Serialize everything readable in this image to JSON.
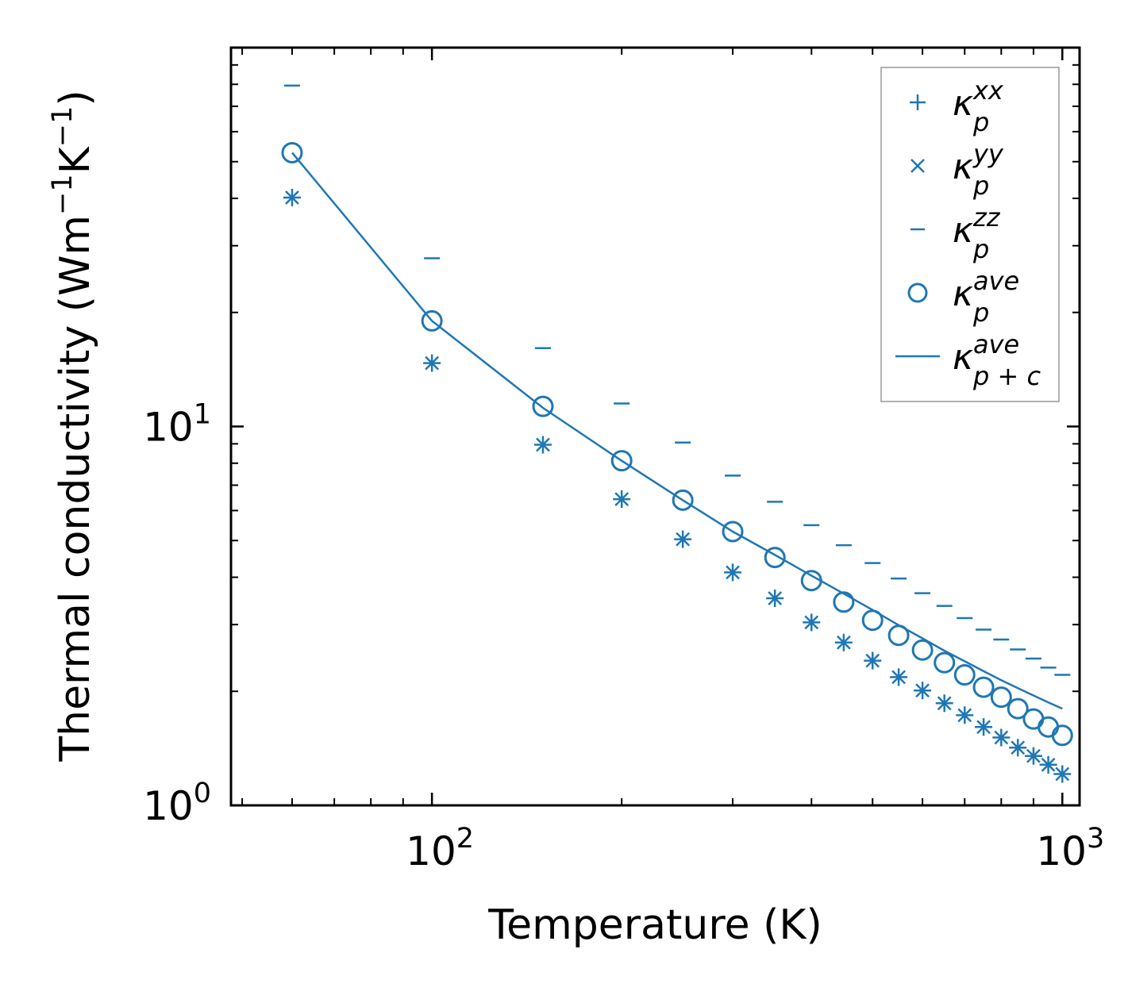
{
  "chart_data": {
    "type": "scatter",
    "xscale": "log",
    "yscale": "log",
    "xlim": [
      48,
      1065
    ],
    "ylim": [
      1.0,
      100
    ],
    "xlabel": "Temperature (K)",
    "ylabel": {
      "base": "Thermal conductivity (Wm",
      "exp1": "−1",
      "mid": "K",
      "exp2": "−1",
      "end": ")"
    },
    "xticks": [
      {
        "base": "10",
        "exp": "2",
        "value": 100
      },
      {
        "base": "10",
        "exp": "3",
        "value": 1000
      }
    ],
    "yticks": [
      {
        "base": "10",
        "exp": "0",
        "value": 1
      },
      {
        "base": "10",
        "exp": "1",
        "value": 10
      }
    ],
    "x": [
      60,
      100,
      150,
      200,
      250,
      300,
      350,
      400,
      450,
      500,
      550,
      600,
      650,
      700,
      750,
      800,
      850,
      900,
      950,
      1000
    ],
    "series": [
      {
        "name": "kp_xx",
        "marker": "plus",
        "values": [
          40.2,
          14.7,
          8.95,
          6.43,
          5.04,
          4.12,
          3.52,
          3.04,
          2.69,
          2.41,
          2.18,
          2.01,
          1.86,
          1.73,
          1.61,
          1.51,
          1.42,
          1.35,
          1.28,
          1.21
        ]
      },
      {
        "name": "kp_yy",
        "marker": "x",
        "values": [
          40.2,
          14.7,
          8.95,
          6.43,
          5.04,
          4.12,
          3.52,
          3.04,
          2.69,
          2.41,
          2.18,
          2.01,
          1.86,
          1.73,
          1.61,
          1.51,
          1.42,
          1.35,
          1.28,
          1.21
        ]
      },
      {
        "name": "kp_zz",
        "marker": "hline",
        "values": [
          79.4,
          27.8,
          16.1,
          11.5,
          9.07,
          7.42,
          6.33,
          5.49,
          4.86,
          4.36,
          3.97,
          3.63,
          3.36,
          3.12,
          2.91,
          2.74,
          2.58,
          2.44,
          2.31,
          2.21
        ]
      },
      {
        "name": "kp_ave",
        "marker": "circle",
        "values": [
          52.8,
          19.0,
          11.3,
          8.12,
          6.39,
          5.28,
          4.51,
          3.92,
          3.44,
          3.08,
          2.81,
          2.57,
          2.38,
          2.21,
          2.05,
          1.93,
          1.8,
          1.69,
          1.61,
          1.53
        ]
      },
      {
        "name": "kpc_ave",
        "marker": "line",
        "values": [
          52.8,
          19.0,
          11.2,
          8.12,
          6.39,
          5.28,
          4.58,
          4.04,
          3.62,
          3.28,
          2.99,
          2.76,
          2.56,
          2.4,
          2.26,
          2.14,
          2.04,
          1.95,
          1.87,
          1.8
        ]
      }
    ],
    "legend": {
      "position": "top-right",
      "entries": [
        {
          "base": "κ",
          "sub": "p",
          "sup": "xx"
        },
        {
          "base": "κ",
          "sub": "p",
          "sup": "yy"
        },
        {
          "base": "κ",
          "sub": "p",
          "sup": "zz"
        },
        {
          "base": "κ",
          "sub": "p",
          "sup": "ave"
        },
        {
          "base": "κ",
          "sub": "p + c",
          "sup": "ave"
        }
      ]
    },
    "color": "#1f77b4"
  }
}
